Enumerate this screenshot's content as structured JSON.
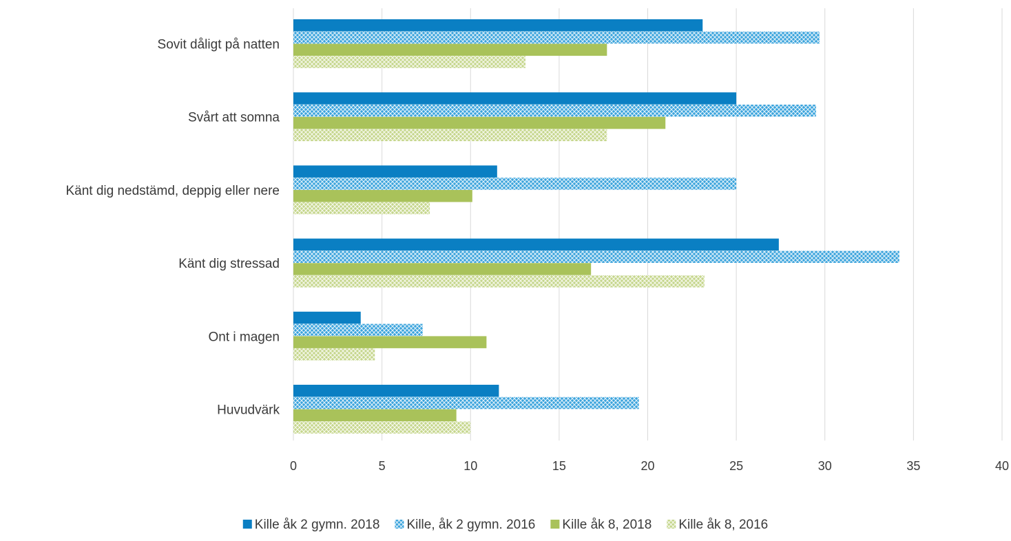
{
  "chart_data": {
    "type": "bar",
    "orientation": "horizontal",
    "title": "",
    "xlabel": "",
    "ylabel": "",
    "xlim": [
      0,
      40
    ],
    "x_ticks": [
      0,
      5,
      10,
      15,
      20,
      25,
      30,
      35,
      40
    ],
    "grid": true,
    "legend_position": "bottom",
    "categories": [
      "Sovit dåligt på natten",
      "Svårt att somna",
      "Känt dig nedstämd, deppig eller nere",
      "Känt dig stressad",
      "Ont i magen",
      "Huvudvärk"
    ],
    "series": [
      {
        "name": "Kille åk 2 gymn. 2018",
        "color": "#0a7fc3",
        "pattern": "solid",
        "values": [
          23.1,
          25.0,
          11.5,
          27.4,
          3.8,
          11.6
        ]
      },
      {
        "name": "Kille, åk 2 gymn. 2016",
        "color": "#3aa3dc",
        "pattern": "crosshatch",
        "values": [
          29.7,
          29.5,
          25.0,
          34.2,
          7.3,
          19.5
        ]
      },
      {
        "name": "Kille åk 8, 2018",
        "color": "#a9c25a",
        "pattern": "solid",
        "values": [
          17.7,
          21.0,
          10.1,
          16.8,
          10.9,
          9.2
        ]
      },
      {
        "name": "Kille åk 8, 2016",
        "color": "#c5d68c",
        "pattern": "crosshatch",
        "values": [
          13.1,
          17.7,
          7.7,
          23.2,
          4.6,
          10.0
        ]
      }
    ]
  }
}
